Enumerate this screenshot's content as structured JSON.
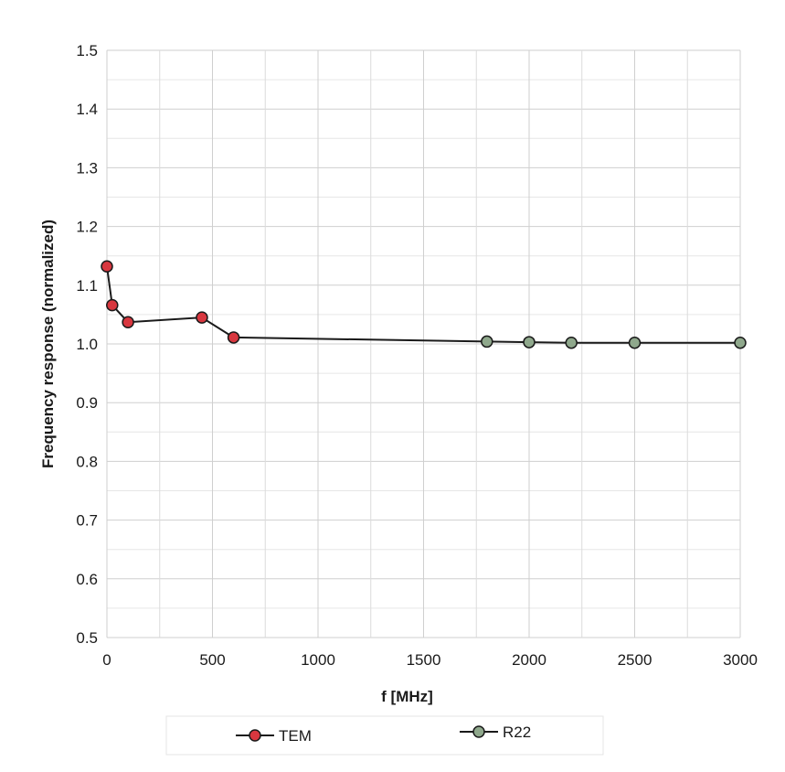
{
  "chart_data": {
    "type": "line",
    "title": "",
    "xlabel": "f [MHz]",
    "ylabel": "Frequency response (normalized)",
    "xlim": [
      0,
      3000
    ],
    "ylim": [
      0.5,
      1.5
    ],
    "x_ticks": [
      0,
      500,
      1000,
      1500,
      2000,
      2500,
      3000
    ],
    "x_minor_ticks": [
      250,
      750,
      1250,
      1750,
      2250,
      2750
    ],
    "y_ticks": [
      0.5,
      0.6,
      0.7,
      0.8,
      0.9,
      1.0,
      1.1,
      1.2,
      1.3,
      1.4,
      1.5
    ],
    "y_tick_labels": [
      "0.5",
      "0.6",
      "0.7",
      "0.8",
      "0.9",
      "1.0",
      "1.1",
      "1.2",
      "1.3",
      "1.4",
      "1.5"
    ],
    "grid": true,
    "legend_position": "bottom",
    "series": [
      {
        "name": "TEM",
        "color": "#d8373f",
        "marker": "circle",
        "x": [
          0,
          25,
          100,
          450,
          600
        ],
        "y": [
          1.132,
          1.066,
          1.037,
          1.045,
          1.011
        ]
      },
      {
        "name": "R22",
        "color": "#8fa88c",
        "marker": "circle",
        "x": [
          600,
          1800,
          2000,
          2200,
          2500,
          3000
        ],
        "y": [
          1.011,
          1.004,
          1.003,
          1.002,
          1.002,
          1.002
        ]
      }
    ]
  }
}
